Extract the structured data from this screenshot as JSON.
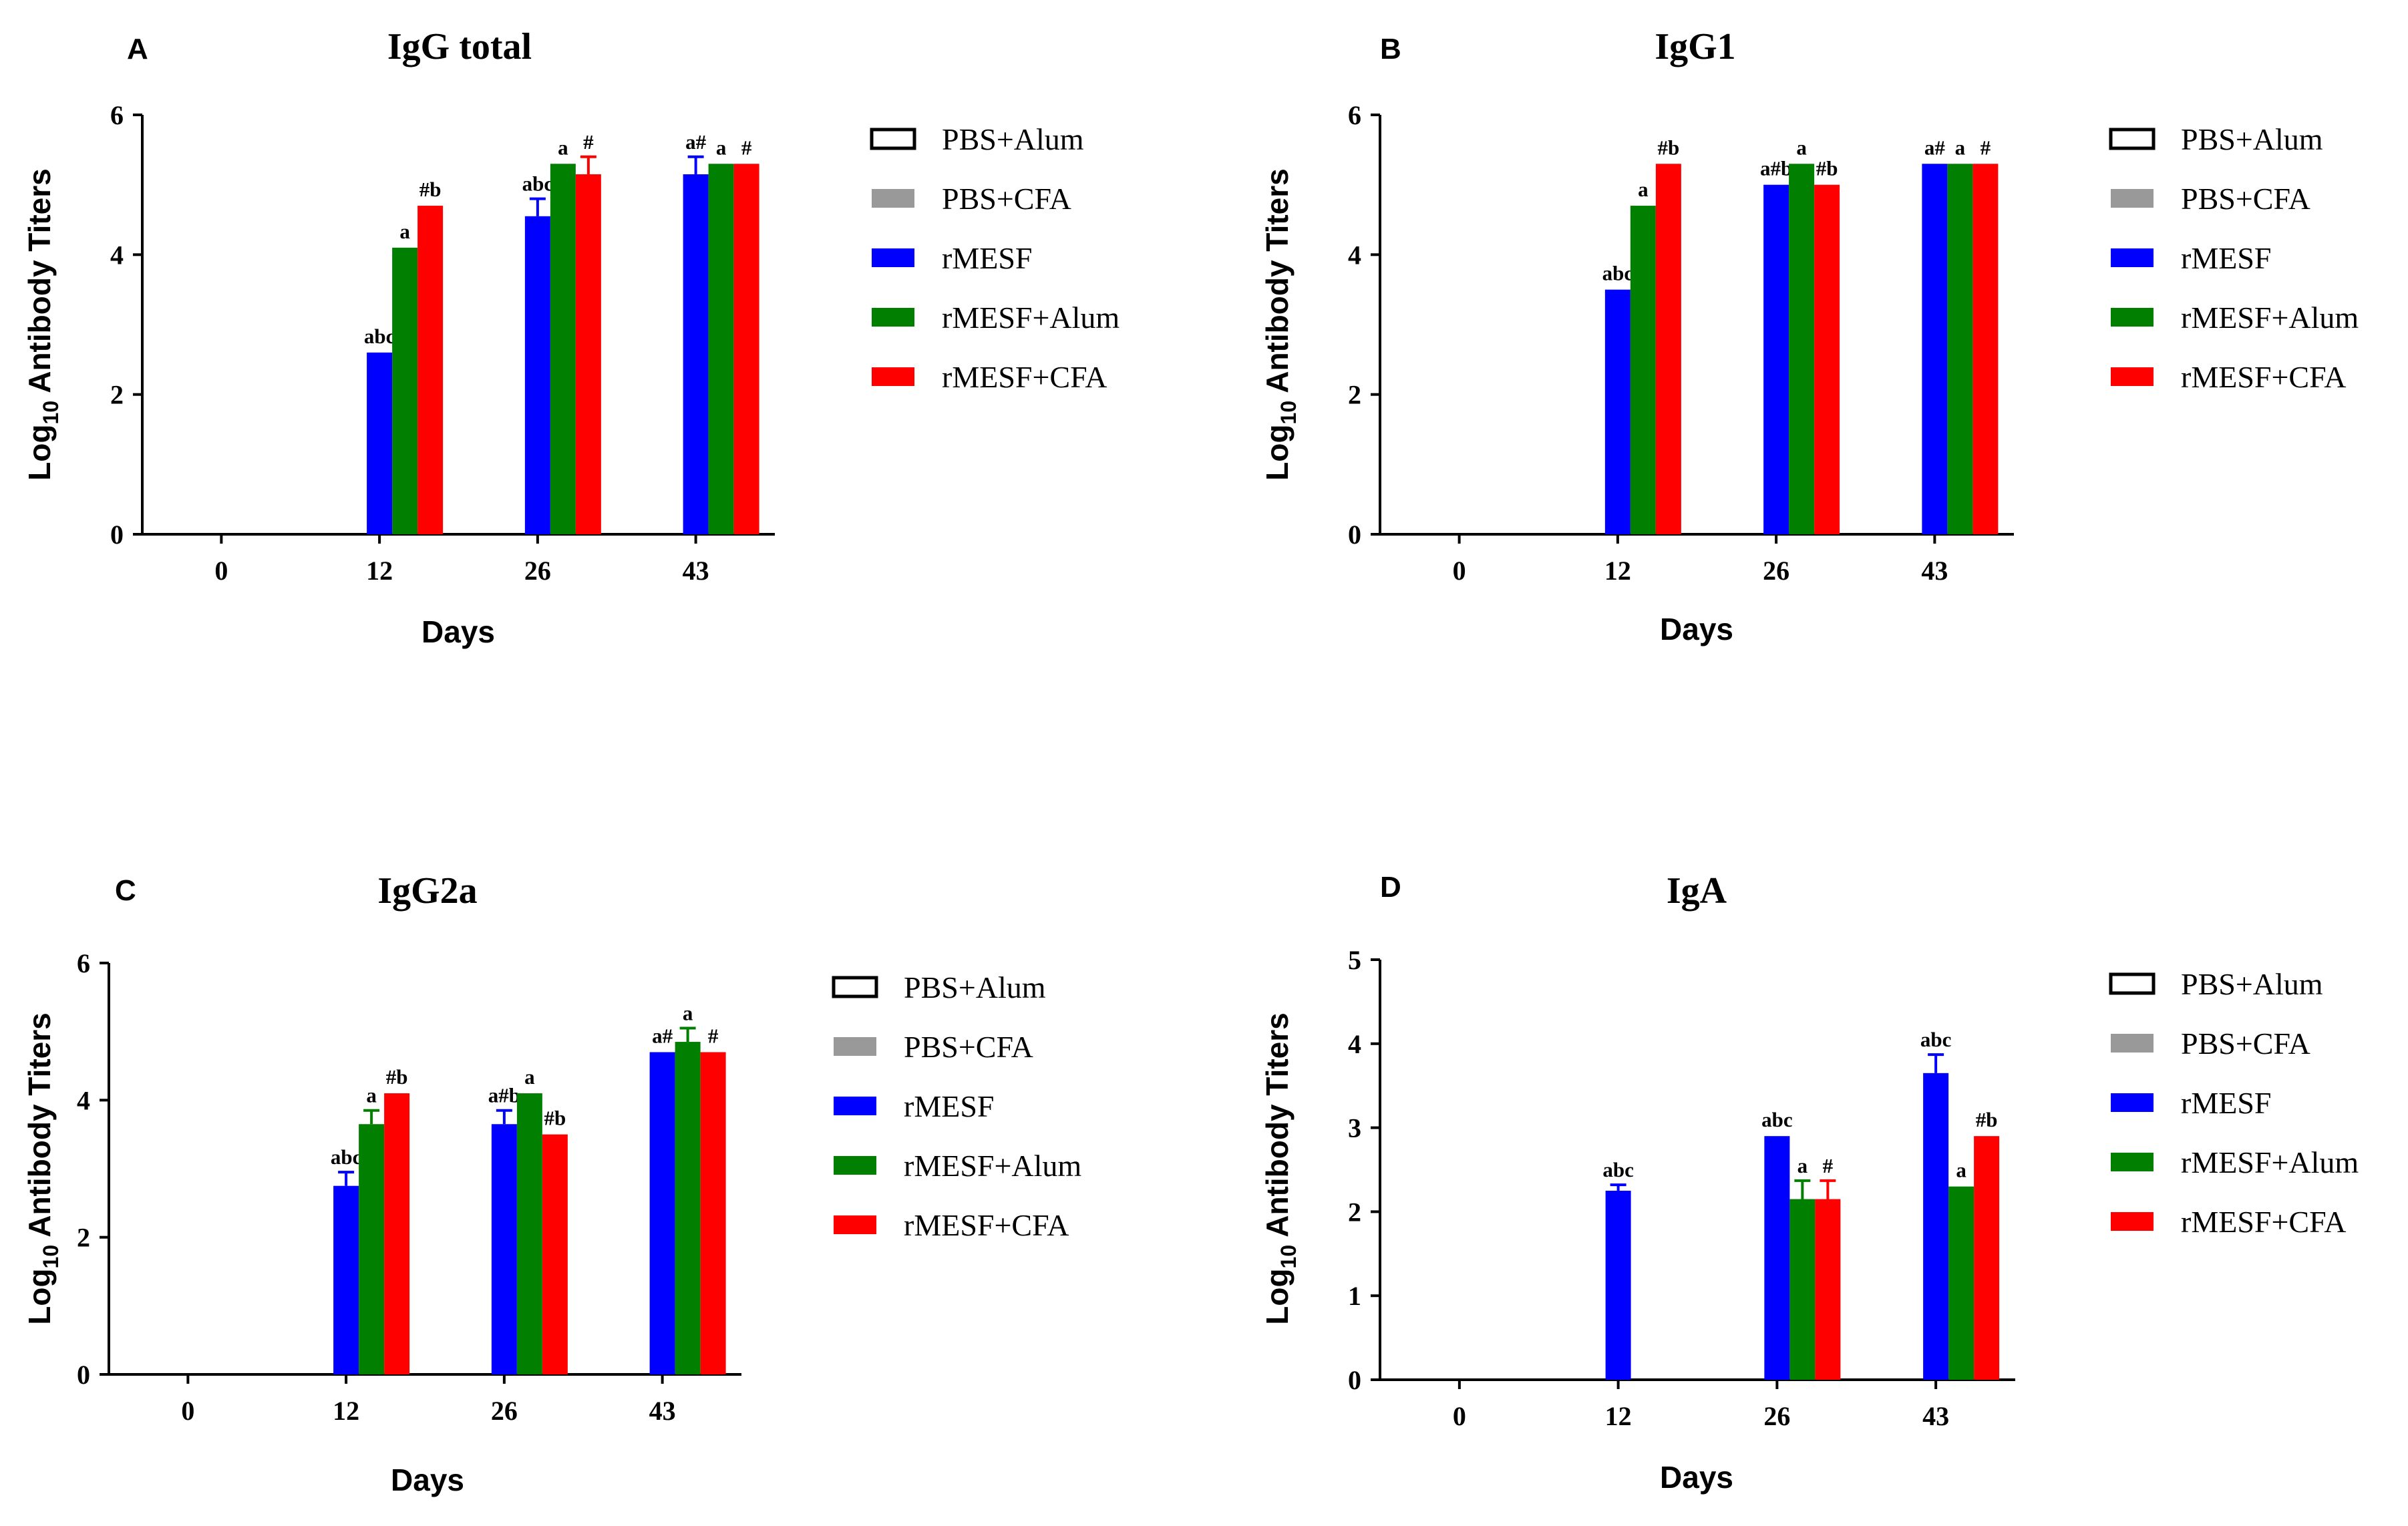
{
  "chart_data": [
    {
      "type": "bar",
      "panel": "A",
      "title": "IgG total",
      "xlabel": "Days",
      "ylabel_main": "Log",
      "ylabel_sub": "10",
      "ylabel_rest": " Antibody Titers",
      "categories": [
        "0",
        "12",
        "26",
        "43"
      ],
      "ylim": [
        0,
        6
      ],
      "yticks": [
        "0",
        "2",
        "4",
        "6"
      ],
      "series": [
        {
          "name": "PBS+Alum",
          "color": "#ffffff",
          "values": [
            0,
            0,
            0,
            0
          ],
          "errors": [
            0,
            0,
            0,
            0
          ],
          "labels": [
            "",
            "",
            "",
            ""
          ]
        },
        {
          "name": "PBS+CFA",
          "color": "#999999",
          "values": [
            0,
            0,
            0,
            0
          ],
          "errors": [
            0,
            0,
            0,
            0
          ],
          "labels": [
            "",
            "",
            "",
            ""
          ]
        },
        {
          "name": "rMESF",
          "color": "#0000ff",
          "values": [
            0,
            2.6,
            4.55,
            5.15
          ],
          "errors": [
            0,
            0,
            0.25,
            0.25
          ],
          "labels": [
            "",
            "abc",
            "abc",
            "a#"
          ]
        },
        {
          "name": "rMESF+Alum",
          "color": "#007f00",
          "values": [
            0,
            4.1,
            5.3,
            5.3
          ],
          "errors": [
            0,
            0,
            0,
            0
          ],
          "labels": [
            "",
            "a",
            "a",
            "a"
          ]
        },
        {
          "name": "rMESF+CFA",
          "color": "#ff0000",
          "values": [
            0,
            4.7,
            5.15,
            5.3
          ],
          "errors": [
            0,
            0,
            0.25,
            0
          ],
          "labels": [
            "",
            "#b",
            "#",
            "#"
          ]
        }
      ]
    },
    {
      "type": "bar",
      "panel": "B",
      "title": "IgG1",
      "xlabel": "Days",
      "ylabel_main": "Log",
      "ylabel_sub": "10",
      "ylabel_rest": " Antibody Titers",
      "categories": [
        "0",
        "12",
        "26",
        "43"
      ],
      "ylim": [
        0,
        6
      ],
      "yticks": [
        "0",
        "2",
        "4",
        "6"
      ],
      "series": [
        {
          "name": "PBS+Alum",
          "color": "#ffffff",
          "values": [
            0,
            0,
            0,
            0
          ],
          "errors": [
            0,
            0,
            0,
            0
          ],
          "labels": [
            "",
            "",
            "",
            ""
          ]
        },
        {
          "name": "PBS+CFA",
          "color": "#999999",
          "values": [
            0,
            0,
            0,
            0
          ],
          "errors": [
            0,
            0,
            0,
            0
          ],
          "labels": [
            "",
            "",
            "",
            ""
          ]
        },
        {
          "name": "rMESF",
          "color": "#0000ff",
          "values": [
            0,
            3.5,
            5.0,
            5.3
          ],
          "errors": [
            0,
            0,
            0,
            0
          ],
          "labels": [
            "",
            "abc",
            "a#b",
            "a#"
          ]
        },
        {
          "name": "rMESF+Alum",
          "color": "#007f00",
          "values": [
            0,
            4.7,
            5.3,
            5.3
          ],
          "errors": [
            0,
            0,
            0,
            0
          ],
          "labels": [
            "",
            "a",
            "a",
            "a"
          ]
        },
        {
          "name": "rMESF+CFA",
          "color": "#ff0000",
          "values": [
            0,
            5.3,
            5.0,
            5.3
          ],
          "errors": [
            0,
            0,
            0,
            0
          ],
          "labels": [
            "",
            "#b",
            "#b",
            "#"
          ]
        }
      ]
    },
    {
      "type": "bar",
      "panel": "C",
      "title": "IgG2a",
      "xlabel": "Days",
      "ylabel_main": "Log",
      "ylabel_sub": "10",
      "ylabel_rest": " Antibody Titers",
      "categories": [
        "0",
        "12",
        "26",
        "43"
      ],
      "ylim": [
        0,
        6
      ],
      "yticks": [
        "0",
        "2",
        "4",
        "6"
      ],
      "series": [
        {
          "name": "PBS+Alum",
          "color": "#ffffff",
          "values": [
            0,
            0,
            0,
            0
          ],
          "errors": [
            0,
            0,
            0,
            0
          ],
          "labels": [
            "",
            "",
            "",
            ""
          ]
        },
        {
          "name": "PBS+CFA",
          "color": "#999999",
          "values": [
            0,
            0,
            0,
            0
          ],
          "errors": [
            0,
            0,
            0,
            0
          ],
          "labels": [
            "",
            "",
            "",
            ""
          ]
        },
        {
          "name": "rMESF",
          "color": "#0000ff",
          "values": [
            0,
            2.75,
            3.65,
            4.7
          ],
          "errors": [
            0,
            0.2,
            0.2,
            0
          ],
          "labels": [
            "",
            "abc",
            "a#b",
            "a#"
          ]
        },
        {
          "name": "rMESF+Alum",
          "color": "#007f00",
          "values": [
            0,
            3.65,
            4.1,
            4.85
          ],
          "errors": [
            0,
            0.2,
            0,
            0.2
          ],
          "labels": [
            "",
            "a",
            "a",
            "a"
          ]
        },
        {
          "name": "rMESF+CFA",
          "color": "#ff0000",
          "values": [
            0,
            4.1,
            3.5,
            4.7
          ],
          "errors": [
            0,
            0,
            0,
            0
          ],
          "labels": [
            "",
            "#b",
            "#b",
            "#"
          ]
        }
      ]
    },
    {
      "type": "bar",
      "panel": "D",
      "title": "IgA",
      "xlabel": "Days",
      "ylabel_main": "Log",
      "ylabel_sub": "10",
      "ylabel_rest": " Antibody Titers",
      "categories": [
        "0",
        "12",
        "26",
        "43"
      ],
      "ylim": [
        0,
        5
      ],
      "yticks": [
        "0",
        "1",
        "2",
        "3",
        "4",
        "5"
      ],
      "series": [
        {
          "name": "PBS+Alum",
          "color": "#ffffff",
          "values": [
            0,
            0,
            0,
            0
          ],
          "errors": [
            0,
            0,
            0,
            0
          ],
          "labels": [
            "",
            "",
            "",
            ""
          ]
        },
        {
          "name": "PBS+CFA",
          "color": "#999999",
          "values": [
            0,
            0,
            0,
            0
          ],
          "errors": [
            0,
            0,
            0,
            0
          ],
          "labels": [
            "",
            "",
            "",
            ""
          ]
        },
        {
          "name": "rMESF",
          "color": "#0000ff",
          "values": [
            0,
            2.25,
            2.9,
            3.65
          ],
          "errors": [
            0,
            0.07,
            0,
            0.22
          ],
          "labels": [
            "",
            "abc",
            "abc",
            "abc"
          ]
        },
        {
          "name": "rMESF+Alum",
          "color": "#007f00",
          "values": [
            0,
            0,
            2.15,
            2.3
          ],
          "errors": [
            0,
            0,
            0.22,
            0
          ],
          "labels": [
            "",
            "",
            "a",
            "a"
          ]
        },
        {
          "name": "rMESF+CFA",
          "color": "#ff0000",
          "values": [
            0,
            0,
            2.15,
            2.9
          ],
          "errors": [
            0,
            0,
            0.22,
            0
          ],
          "labels": [
            "",
            "",
            "#",
            "#b"
          ]
        }
      ]
    }
  ]
}
